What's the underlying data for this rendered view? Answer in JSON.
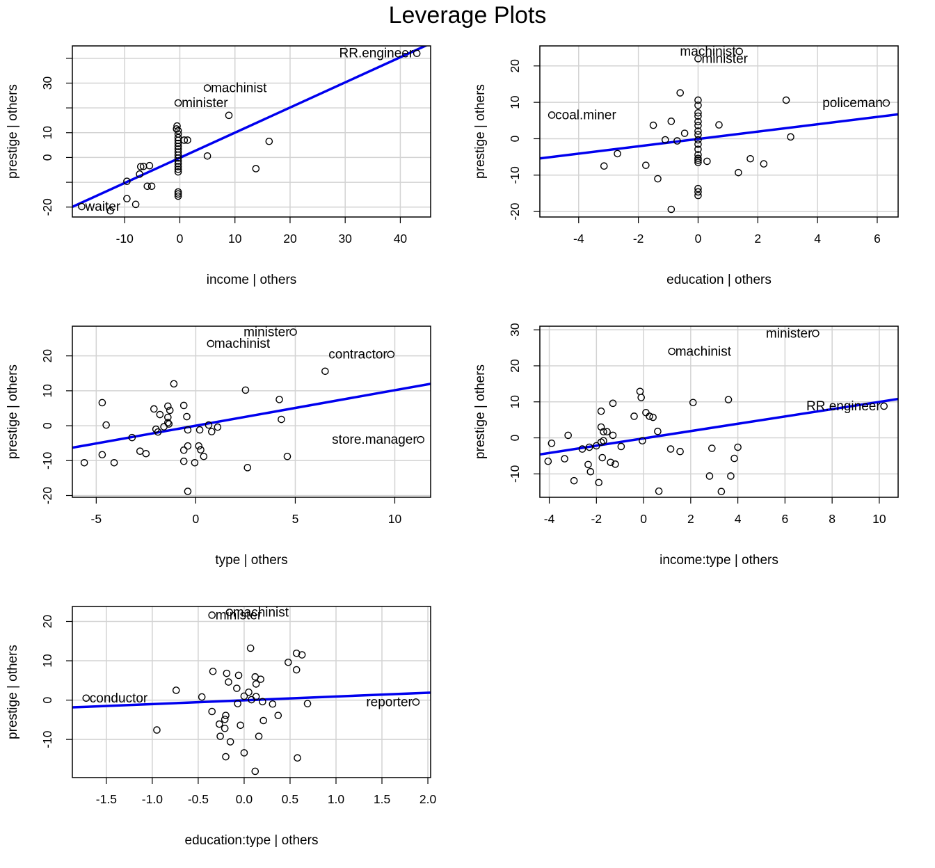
{
  "title": "Leverage Plots",
  "colors": {
    "fit_line": "#0000ee",
    "grid": "#d3d3d3",
    "point": "#000000"
  },
  "chart_data": [
    {
      "type": "scatter",
      "xlabel": "income | others",
      "ylabel": "prestige  | others",
      "xlim": [
        -19.5,
        45.5
      ],
      "ylim": [
        -24,
        45
      ],
      "xticks": [
        -10,
        0,
        10,
        20,
        30,
        40
      ],
      "yticks": [
        -20,
        -10,
        0,
        10,
        20,
        30,
        40
      ],
      "ytick_labels": [
        "-20",
        "",
        "0",
        "10",
        "",
        "30",
        ""
      ],
      "grid": true,
      "fit_line": [
        [
          -19.5,
          -19.9
        ],
        [
          45.5,
          46.0
        ]
      ],
      "points": [
        [
          43,
          42
        ],
        [
          5,
          28
        ],
        [
          -0.3,
          22
        ],
        [
          8.9,
          17
        ],
        [
          16.2,
          6.5
        ],
        [
          13.8,
          -4.5
        ],
        [
          5,
          0.6
        ],
        [
          1.4,
          7
        ],
        [
          0.8,
          7
        ],
        [
          -0.5,
          12.7
        ],
        [
          -0.6,
          11.5
        ],
        [
          -0.3,
          10.8
        ],
        [
          -0.3,
          9.5
        ],
        [
          -0.3,
          8
        ],
        [
          -0.3,
          6.9
        ],
        [
          -0.3,
          5.7
        ],
        [
          -0.3,
          4.5
        ],
        [
          -0.3,
          3.4
        ],
        [
          -0.3,
          2.2
        ],
        [
          -0.3,
          1
        ],
        [
          -0.3,
          -0.2
        ],
        [
          -0.3,
          -1.4
        ],
        [
          -0.3,
          -2.5
        ],
        [
          -0.3,
          -3.7
        ],
        [
          -0.3,
          -4.8
        ],
        [
          -0.3,
          -5.8
        ],
        [
          -0.3,
          -13.9
        ],
        [
          -0.3,
          -14.7
        ],
        [
          -0.3,
          -15.6
        ],
        [
          -5.5,
          -3.3
        ],
        [
          -6.6,
          -3.6
        ],
        [
          -7.1,
          -3.7
        ],
        [
          -7.3,
          -6.7
        ],
        [
          -5.9,
          -11.6
        ],
        [
          -5.1,
          -11.6
        ],
        [
          -9.6,
          -9.6
        ],
        [
          -9.6,
          -16.6
        ],
        [
          -8,
          -18.9
        ],
        [
          -17.8,
          -19.8
        ],
        [
          -12.6,
          -21.5
        ]
      ],
      "labels": [
        {
          "text": "RR.engineer",
          "x": 43,
          "y": 42,
          "anchor": "end"
        },
        {
          "text": "machinist",
          "x": 5,
          "y": 28,
          "anchor": "start"
        },
        {
          "text": "minister",
          "x": -0.3,
          "y": 22,
          "anchor": "start"
        },
        {
          "text": "waiter",
          "x": -17.8,
          "y": -19.8,
          "anchor": "start"
        }
      ]
    },
    {
      "type": "scatter",
      "xlabel": "education | others",
      "ylabel": "prestige  | others",
      "xlim": [
        -5.3,
        6.7
      ],
      "ylim": [
        -21.5,
        25.5
      ],
      "xticks": [
        -4,
        -2,
        0,
        2,
        4,
        6
      ],
      "yticks": [
        -20,
        -10,
        0,
        10,
        20
      ],
      "ytick_labels": [
        "-20",
        "-10",
        "0",
        "10",
        "20"
      ],
      "grid": true,
      "fit_line": [
        [
          -5.3,
          -5.4
        ],
        [
          6.7,
          6.7
        ]
      ],
      "points": [
        [
          1.38,
          24
        ],
        [
          0,
          22
        ],
        [
          6.3,
          9.8
        ],
        [
          -4.9,
          6.5
        ],
        [
          2.95,
          10.6
        ],
        [
          3.1,
          0.5
        ],
        [
          -0.6,
          12.6
        ],
        [
          -0.9,
          4.8
        ],
        [
          -1.5,
          3.7
        ],
        [
          -0.45,
          1.5
        ],
        [
          -0.7,
          -0.6
        ],
        [
          -1.1,
          -0.3
        ],
        [
          0.7,
          3.8
        ],
        [
          0.3,
          -6.2
        ],
        [
          -2.7,
          -4.1
        ],
        [
          -3.15,
          -7.5
        ],
        [
          -1.75,
          -7.3
        ],
        [
          -1.35,
          -11
        ],
        [
          -0.9,
          -19.4
        ],
        [
          1.35,
          -9.3
        ],
        [
          1.75,
          -5.5
        ],
        [
          2.2,
          -6.9
        ],
        [
          0,
          -15.6
        ],
        [
          0,
          -14.6
        ],
        [
          0,
          -13.7
        ],
        [
          0,
          10.6
        ],
        [
          0,
          9.2
        ],
        [
          0,
          7.1
        ],
        [
          0,
          6.2
        ],
        [
          0,
          4.7
        ],
        [
          0,
          3.6
        ],
        [
          0,
          2.1
        ],
        [
          0,
          1.1
        ],
        [
          0,
          -0.3
        ],
        [
          0,
          -1.5
        ],
        [
          0,
          -2.9
        ],
        [
          0,
          -4.4
        ],
        [
          0,
          -5.4
        ],
        [
          0,
          -5.9
        ],
        [
          0,
          -6.5
        ]
      ],
      "labels": [
        {
          "text": "machinist",
          "x": 1.38,
          "y": 24,
          "anchor": "end"
        },
        {
          "text": "minister",
          "x": 0,
          "y": 22,
          "anchor": "start"
        },
        {
          "text": "policeman",
          "x": 6.3,
          "y": 9.8,
          "anchor": "end"
        },
        {
          "text": "coal.miner",
          "x": -4.9,
          "y": 6.5,
          "anchor": "start"
        }
      ]
    },
    {
      "type": "scatter",
      "xlabel": "type | others",
      "ylabel": "prestige  | others",
      "xlim": [
        -6.2,
        11.8
      ],
      "ylim": [
        -20.5,
        28.5
      ],
      "xticks": [
        -5,
        0,
        5,
        10
      ],
      "yticks": [
        -20,
        -10,
        0,
        10,
        20
      ],
      "ytick_labels": [
        "-20",
        "-10",
        "0",
        "10",
        "20"
      ],
      "grid": true,
      "fit_line": [
        [
          -6.2,
          -6.3
        ],
        [
          11.8,
          12.0
        ]
      ],
      "points": [
        [
          4.9,
          26.8
        ],
        [
          0.75,
          23.5
        ],
        [
          9.8,
          20.4
        ],
        [
          6.5,
          15.6
        ],
        [
          11.3,
          -4
        ],
        [
          -1.1,
          12
        ],
        [
          2.5,
          10.2
        ],
        [
          4.2,
          7.5
        ],
        [
          4.3,
          1.8
        ],
        [
          4.6,
          -8.8
        ],
        [
          -4.7,
          6.6
        ],
        [
          -4.5,
          0.2
        ],
        [
          -5.6,
          -10.6
        ],
        [
          -4.7,
          -8.3
        ],
        [
          -4.1,
          -10.6
        ],
        [
          -3.2,
          -3.4
        ],
        [
          -2.8,
          -7.3
        ],
        [
          -2.5,
          -8
        ],
        [
          -2.1,
          4.8
        ],
        [
          -1.8,
          3.2
        ],
        [
          -1.4,
          5.6
        ],
        [
          -1.3,
          4.4
        ],
        [
          -1.4,
          2.4
        ],
        [
          -1.4,
          0.9
        ],
        [
          -1.35,
          0.5
        ],
        [
          -1.6,
          -0.3
        ],
        [
          -1.9,
          -1.8
        ],
        [
          -2,
          -1
        ],
        [
          -0.6,
          5.8
        ],
        [
          -0.45,
          2.6
        ],
        [
          -0.4,
          -5.8
        ],
        [
          -0.4,
          -1.2
        ],
        [
          -0.6,
          -7
        ],
        [
          -0.6,
          -10.2
        ],
        [
          0.15,
          -5.8
        ],
        [
          0.2,
          -1.2
        ],
        [
          0.25,
          -6.9
        ],
        [
          0.4,
          -8.8
        ],
        [
          0.65,
          0.2
        ],
        [
          0.8,
          -1.7
        ],
        [
          1.1,
          -0.4
        ],
        [
          2.6,
          -12
        ],
        [
          -0.4,
          -18.8
        ],
        [
          -0.05,
          -10.6
        ]
      ],
      "labels": [
        {
          "text": "minister",
          "x": 4.9,
          "y": 26.8,
          "anchor": "end"
        },
        {
          "text": "machinist",
          "x": 0.75,
          "y": 23.5,
          "anchor": "start"
        },
        {
          "text": "contractor",
          "x": 9.8,
          "y": 20.4,
          "anchor": "end"
        },
        {
          "text": "store.manager",
          "x": 11.3,
          "y": -4,
          "anchor": "end"
        }
      ]
    },
    {
      "type": "scatter",
      "xlabel": "income:type | others",
      "ylabel": "prestige  | others",
      "xlim": [
        -4.4,
        10.8
      ],
      "ylim": [
        -16.5,
        31
      ],
      "xticks": [
        -4,
        -2,
        0,
        2,
        4,
        6,
        8,
        10
      ],
      "yticks": [
        -10,
        0,
        10,
        20,
        30
      ],
      "ytick_labels": [
        "-10",
        "0",
        "10",
        "20",
        "30"
      ],
      "grid": true,
      "fit_line": [
        [
          -4.4,
          -4.6
        ],
        [
          10.8,
          10.8
        ]
      ],
      "points": [
        [
          7.3,
          29
        ],
        [
          1.2,
          24
        ],
        [
          10.2,
          8.8
        ],
        [
          3.6,
          10.6
        ],
        [
          2.1,
          9.8
        ],
        [
          -1.3,
          9.6
        ],
        [
          -0.15,
          12.9
        ],
        [
          -0.1,
          11.2
        ],
        [
          -1.8,
          7.4
        ],
        [
          0.1,
          7
        ],
        [
          0.25,
          6
        ],
        [
          0.4,
          5.7
        ],
        [
          -0.4,
          6
        ],
        [
          -1.8,
          3
        ],
        [
          -1.7,
          1.7
        ],
        [
          -1.55,
          1.7
        ],
        [
          -1.3,
          0.7
        ],
        [
          0.6,
          1.8
        ],
        [
          -3.2,
          0.7
        ],
        [
          -3.9,
          -1.5
        ],
        [
          -2.6,
          -3.1
        ],
        [
          -2.3,
          -2.6
        ],
        [
          -2,
          -2.2
        ],
        [
          -1.8,
          -1.2
        ],
        [
          -1.7,
          -0.8
        ],
        [
          -0.05,
          -0.8
        ],
        [
          -0.95,
          -2.4
        ],
        [
          -1.75,
          -5.5
        ],
        [
          -1.4,
          -6.8
        ],
        [
          -1.2,
          -7.3
        ],
        [
          -2.35,
          -7.4
        ],
        [
          -2.25,
          -9.4
        ],
        [
          -3.35,
          -5.8
        ],
        [
          -4.05,
          -6.5
        ],
        [
          -2.95,
          -11.9
        ],
        [
          -1.9,
          -12.4
        ],
        [
          0.65,
          -14.8
        ],
        [
          1.15,
          -3.1
        ],
        [
          1.55,
          -3.8
        ],
        [
          2.8,
          -10.6
        ],
        [
          2.9,
          -2.9
        ],
        [
          3.7,
          -10.6
        ],
        [
          3.85,
          -5.7
        ],
        [
          4,
          -2.6
        ],
        [
          3.3,
          -14.9
        ]
      ],
      "labels": [
        {
          "text": "minister",
          "x": 7.3,
          "y": 29,
          "anchor": "end"
        },
        {
          "text": "machinist",
          "x": 1.2,
          "y": 24,
          "anchor": "start"
        },
        {
          "text": "RR.engineer",
          "x": 10.2,
          "y": 8.8,
          "anchor": "end"
        }
      ]
    },
    {
      "type": "scatter",
      "xlabel": "education:type | others",
      "ylabel": "prestige  | others",
      "xlim": [
        -1.87,
        2.03
      ],
      "ylim": [
        -19.7,
        23.8
      ],
      "xticks": [
        -1.5,
        -1.0,
        -0.5,
        0.0,
        0.5,
        1.0,
        1.5,
        2.0
      ],
      "yticks": [
        -10,
        0,
        10,
        20
      ],
      "ytick_labels": [
        "-10",
        "0",
        "10",
        "20"
      ],
      "grid": true,
      "fit_line": [
        [
          -1.87,
          -1.85
        ],
        [
          2.03,
          1.9
        ]
      ],
      "points": [
        [
          -0.35,
          21.6
        ],
        [
          -0.16,
          22.3
        ],
        [
          1.87,
          -0.5
        ],
        [
          -1.72,
          0.5
        ],
        [
          0.07,
          13.2
        ],
        [
          0.57,
          11.9
        ],
        [
          0.63,
          11.5
        ],
        [
          0.48,
          9.6
        ],
        [
          0.57,
          7.7
        ],
        [
          -0.34,
          7.3
        ],
        [
          -0.19,
          6.8
        ],
        [
          -0.06,
          6.3
        ],
        [
          0.12,
          5.9
        ],
        [
          0.18,
          5.3
        ],
        [
          -0.17,
          4.6
        ],
        [
          0.13,
          4.1
        ],
        [
          -0.08,
          3
        ],
        [
          0.05,
          2
        ],
        [
          -0.74,
          2.5
        ],
        [
          -0.46,
          0.8
        ],
        [
          0,
          1
        ],
        [
          0.13,
          0.9
        ],
        [
          0.08,
          0.1
        ],
        [
          0.2,
          -0.4
        ],
        [
          0.31,
          -1
        ],
        [
          -0.07,
          -0.9
        ],
        [
          0.69,
          -0.9
        ],
        [
          -0.35,
          -2.9
        ],
        [
          -0.2,
          -3.9
        ],
        [
          0.37,
          -3.9
        ],
        [
          -0.21,
          -4.9
        ],
        [
          -0.27,
          -6.1
        ],
        [
          0.21,
          -5.2
        ],
        [
          -0.04,
          -6.4
        ],
        [
          -0.21,
          -7.2
        ],
        [
          -0.26,
          -9.2
        ],
        [
          0.16,
          -9.2
        ],
        [
          -0.15,
          -10.6
        ],
        [
          -0.95,
          -7.6
        ],
        [
          0,
          -13.4
        ],
        [
          -0.2,
          -14.4
        ],
        [
          0.58,
          -14.7
        ],
        [
          0.12,
          -18.1
        ]
      ],
      "labels": [
        {
          "text": "minister",
          "x": -0.35,
          "y": 21.6,
          "anchor": "start"
        },
        {
          "text": "machinist",
          "x": -0.16,
          "y": 22.3,
          "anchor": "start"
        },
        {
          "text": "reporter",
          "x": 1.87,
          "y": -0.5,
          "anchor": "end"
        },
        {
          "text": "conductor",
          "x": -1.72,
          "y": 0.5,
          "anchor": "start"
        }
      ]
    }
  ]
}
